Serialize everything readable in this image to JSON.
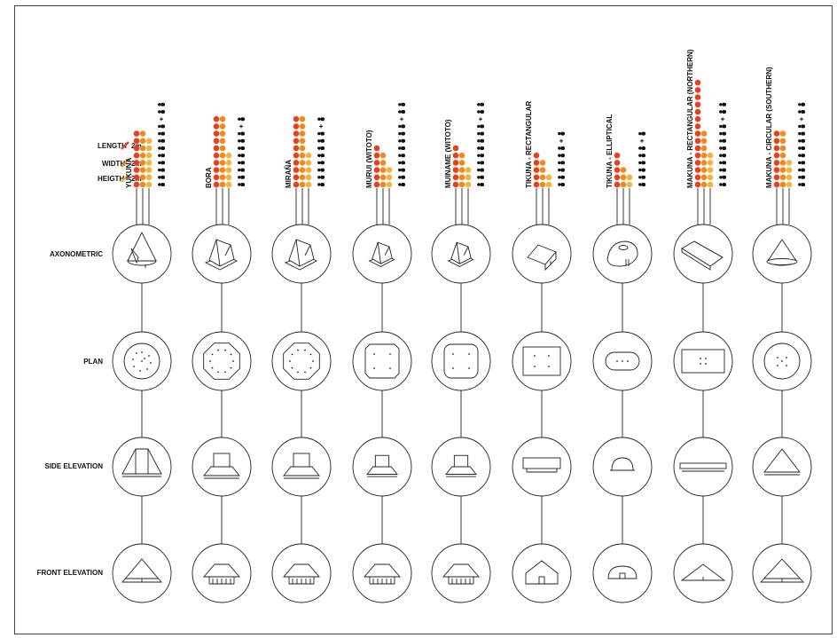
{
  "legend": [
    {
      "label": "LENGTH",
      "value": "2m",
      "color": "#e8401c"
    },
    {
      "label": "WIDTH",
      "value": "2m",
      "color": "#f08a1e"
    },
    {
      "label": "HEIGTH",
      "value": "2m",
      "color": "#f6b23a"
    }
  ],
  "row_labels": [
    "AXONOMETRIC",
    "PLAN",
    "SIDE ELEVATION",
    "FRONT ELEVATION"
  ],
  "houses": [
    {
      "name": "YUKUNA",
      "length": 8,
      "width": 8,
      "height": 7,
      "people": 12,
      "plus_at": 9,
      "axo": "cone",
      "plan": "circle-dots",
      "side": "yukuna",
      "front": "triangle"
    },
    {
      "name": "BORA",
      "length": 10,
      "width": 10,
      "height": 5,
      "people": 10,
      "plus_at": 8,
      "axo": "hip",
      "plan": "octagon",
      "side": "hip-box",
      "front": "hip-house"
    },
    {
      "name": "MIRAÑA",
      "length": 10,
      "width": 10,
      "height": 5,
      "people": 10,
      "plus_at": 8,
      "axo": "hip",
      "plan": "octagon",
      "side": "hip-box",
      "front": "hip-house"
    },
    {
      "name": "MURUI (WITOTO)",
      "length": 6,
      "width": 5,
      "height": 3,
      "people": 12,
      "plus_at": 9,
      "axo": "hip-small",
      "plan": "cut-square",
      "side": "hip-box-small",
      "front": "hip-house"
    },
    {
      "name": "MUINAME (WITOTO)",
      "length": 6,
      "width": 5,
      "height": 3,
      "people": 12,
      "plus_at": 9,
      "axo": "hip-small",
      "plan": "rounded-square",
      "side": "hip-box-small",
      "front": "hip-house"
    },
    {
      "name": "TIKUNA - RECTANGULAR",
      "length": 5,
      "width": 4,
      "height": 2,
      "people": 8,
      "plus_at": 6,
      "axo": "gable",
      "plan": "rect-4dots",
      "side": "flat-roof",
      "front": "gable-house"
    },
    {
      "name": "TIKUNA - ELLIPTICAL",
      "length": 5,
      "width": 3,
      "height": 2,
      "people": 8,
      "plus_at": 6,
      "axo": "dome",
      "plan": "oval",
      "side": "dome",
      "front": "dome-front"
    },
    {
      "name": "MAKUNA - RECTANGULAR (NORTHERN)",
      "length": 15,
      "width": 8,
      "height": 5,
      "people": 12,
      "plus_at": 9,
      "axo": "long-gable",
      "plan": "rect-wide",
      "side": "long-flat",
      "front": "wide-gable"
    },
    {
      "name": "MAKUNA - CIRCULAR (SOUTHERN)",
      "length": 8,
      "width": 8,
      "height": 4,
      "people": 12,
      "plus_at": 9,
      "axo": "cone-short",
      "plan": "circle-5dots",
      "side": "cone-side",
      "front": "triangle-wide"
    }
  ]
}
